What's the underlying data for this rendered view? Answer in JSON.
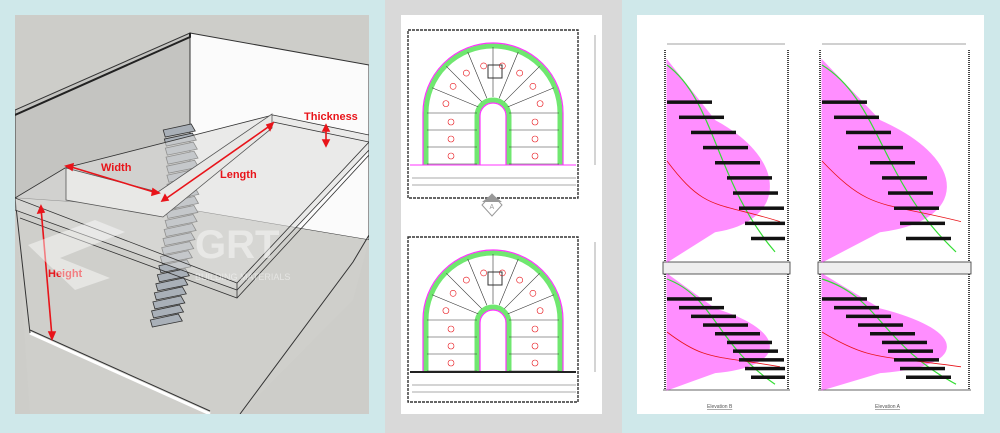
{
  "model_3d": {
    "labels": {
      "thickness": "Thickness",
      "width": "Width",
      "length": "Length",
      "height": "Height"
    },
    "watermark": {
      "logo": "GRT",
      "tagline": "BUILDING MATERIALS"
    }
  },
  "plans": {
    "section_marker": "A"
  },
  "elevations": {
    "left_caption": "Elevation B",
    "right_caption": "Elevation A"
  },
  "colors": {
    "background": "#cfe8ea",
    "dimension_red": "#e8141a",
    "handrail_magenta": "#ff33ff",
    "glass_green": "#33dd33",
    "panel_gray": "#cdcdc9"
  }
}
